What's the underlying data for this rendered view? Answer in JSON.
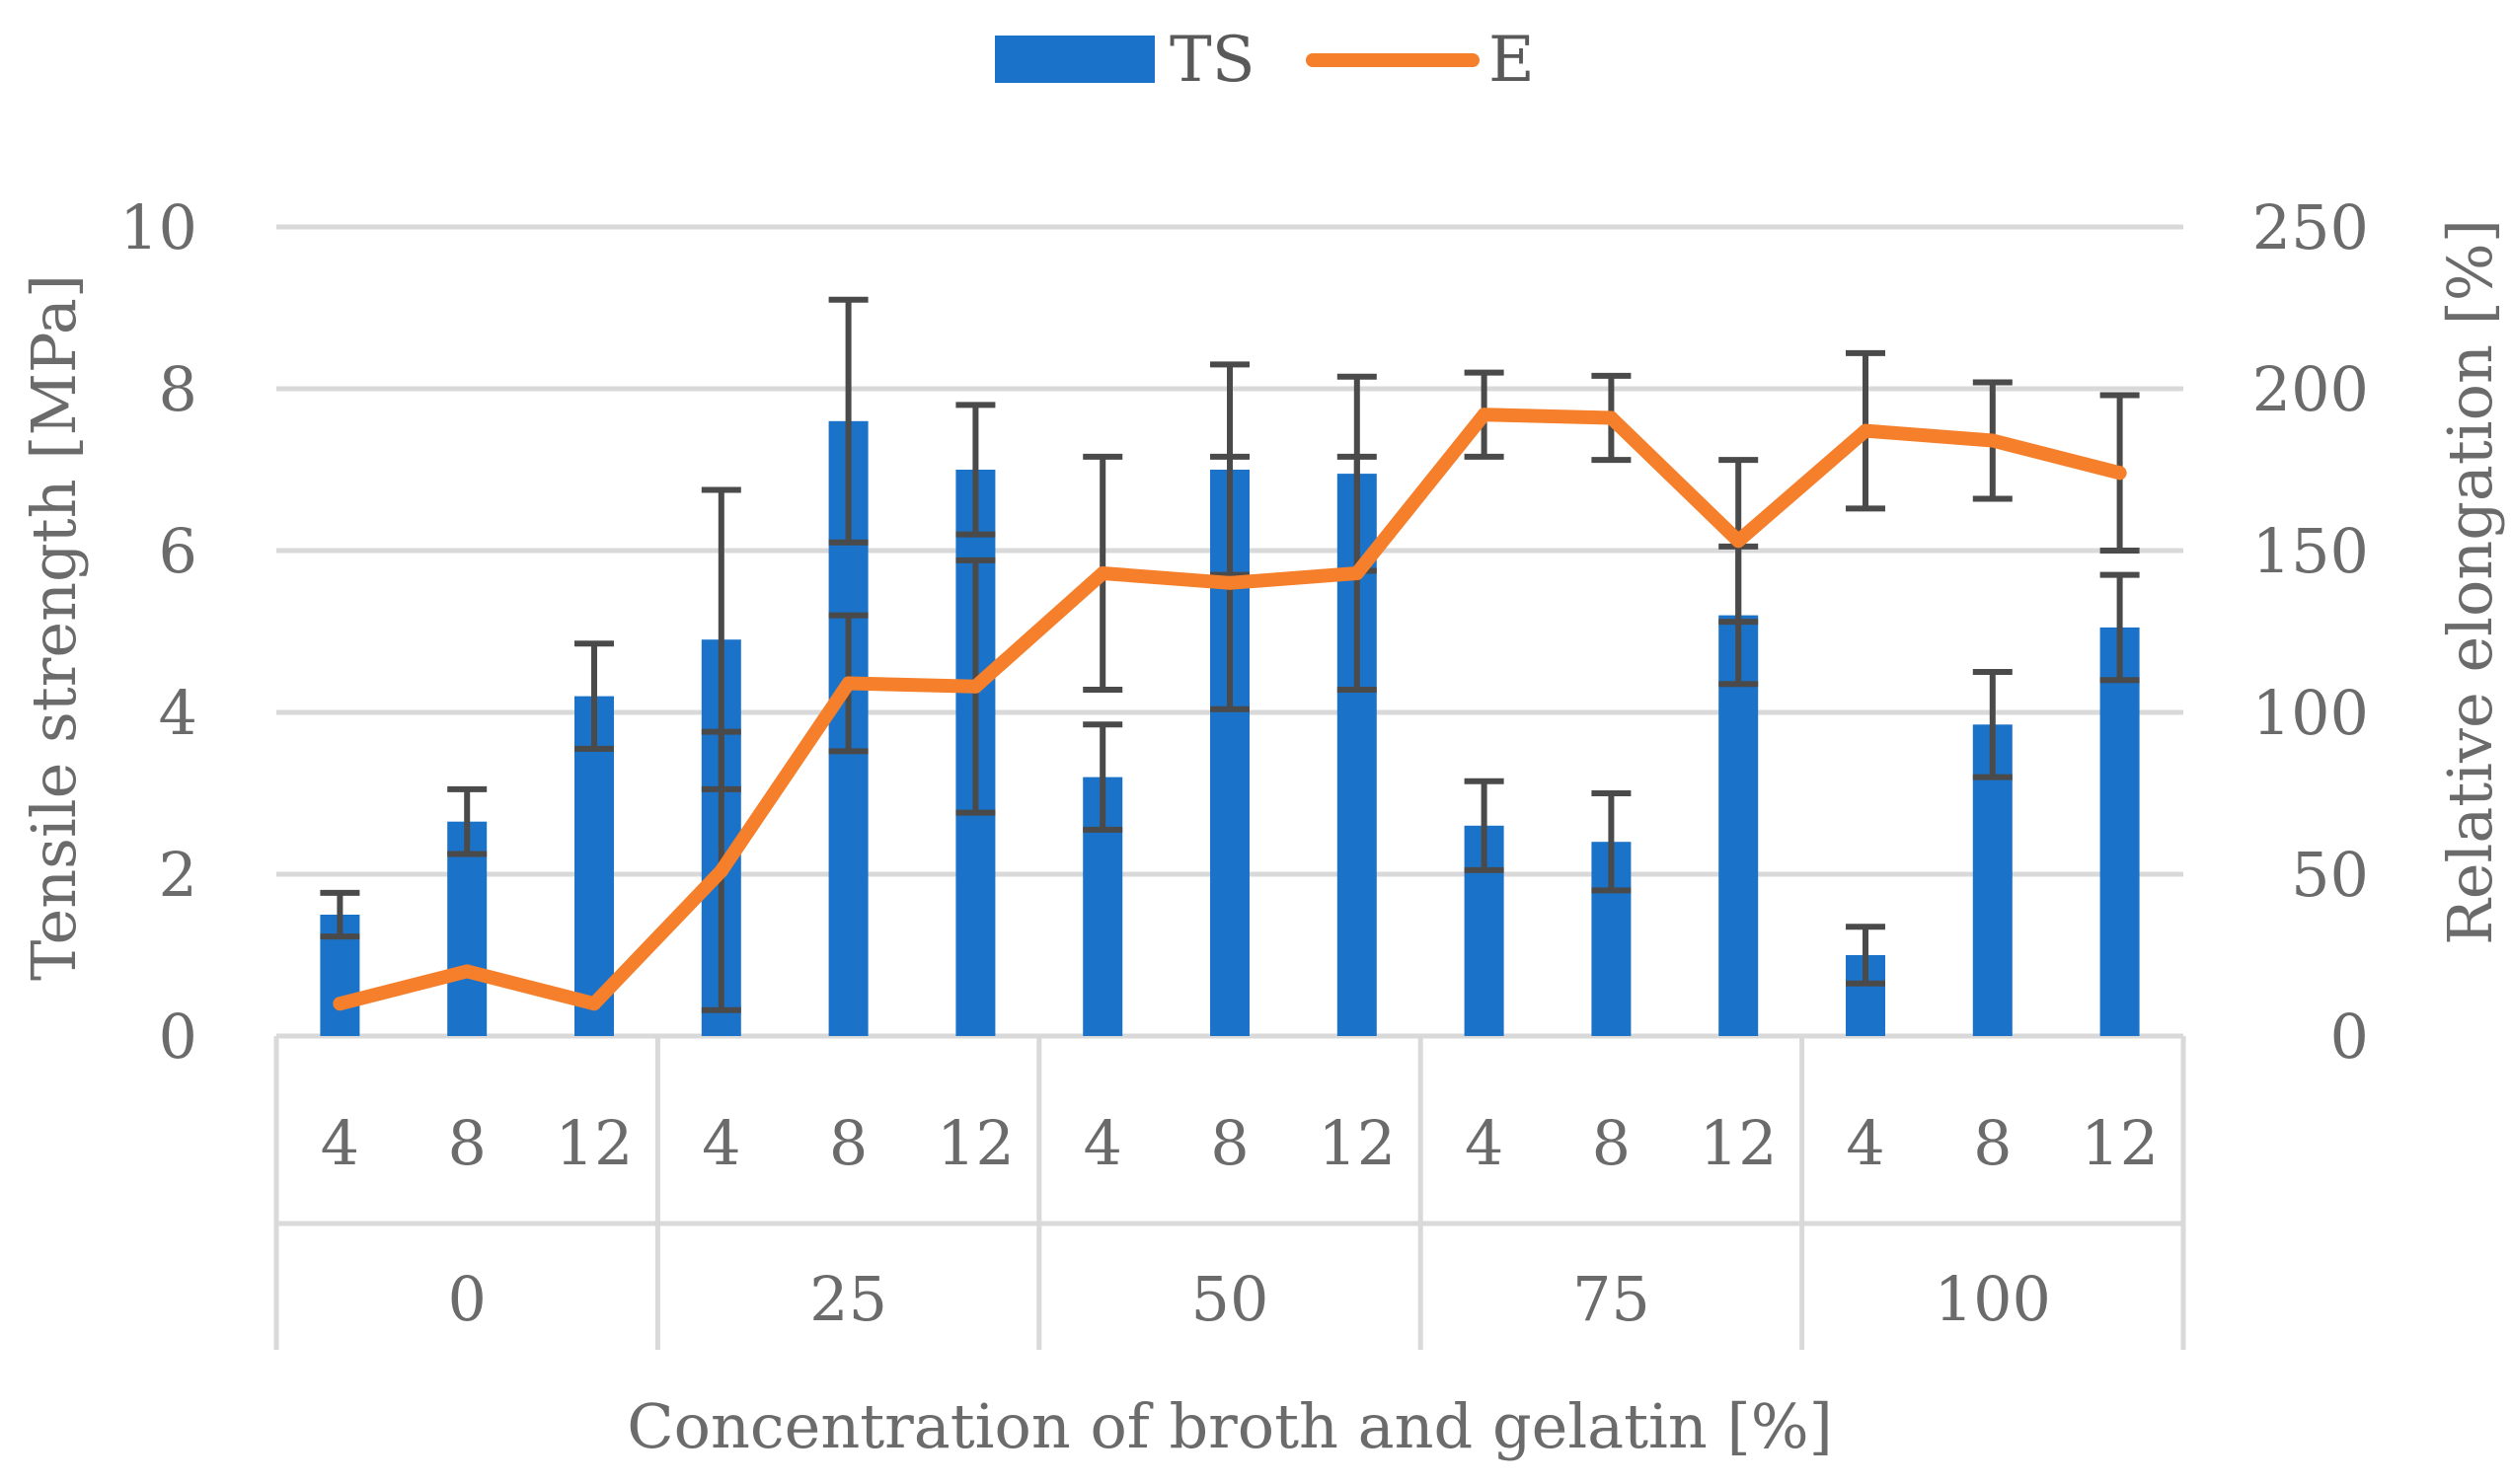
{
  "chart_data": {
    "type": "bar",
    "xlabel": "Concentration of broth and gelatin [%]",
    "ylabel": "Tensile strength [MPa]",
    "y2label": "Relative elongation [%]",
    "ylim": [
      0,
      10
    ],
    "y2lim": [
      0,
      250
    ],
    "yticks": [
      "0",
      "2",
      "4",
      "6",
      "8",
      "10"
    ],
    "y2ticks": [
      "0",
      "50",
      "100",
      "150",
      "200",
      "250"
    ],
    "grid": true,
    "legend_position": "top",
    "groups": [
      "0",
      "25",
      "50",
      "75",
      "100"
    ],
    "subcategories": [
      "4",
      "8",
      "12",
      "4",
      "8",
      "12",
      "4",
      "8",
      "12",
      "4",
      "8",
      "12",
      "4",
      "8",
      "12"
    ],
    "series": [
      {
        "name": "TS",
        "type": "bar",
        "axis": "left",
        "color": "#1a73c8",
        "values": [
          1.5,
          2.65,
          4.2,
          4.9,
          7.6,
          7.0,
          3.2,
          7.0,
          6.95,
          2.6,
          2.4,
          5.2,
          1.0,
          3.85,
          5.05
        ],
        "errors": [
          0.27,
          0.4,
          0.65,
          1.85,
          1.5,
          0.8,
          0.65,
          1.3,
          1.2,
          0.55,
          0.6,
          0.85,
          0.35,
          0.65,
          0.65
        ]
      },
      {
        "name": "E",
        "type": "line",
        "axis": "right",
        "color": "#f57f2a",
        "values": [
          10,
          20,
          10,
          51,
          109,
          108,
          143,
          140,
          143,
          192,
          191,
          153,
          187,
          184,
          174
        ],
        "errors": [
          0,
          0,
          0,
          43,
          21,
          39,
          36,
          39,
          36,
          13,
          13,
          25,
          24,
          18,
          24
        ]
      }
    ]
  }
}
